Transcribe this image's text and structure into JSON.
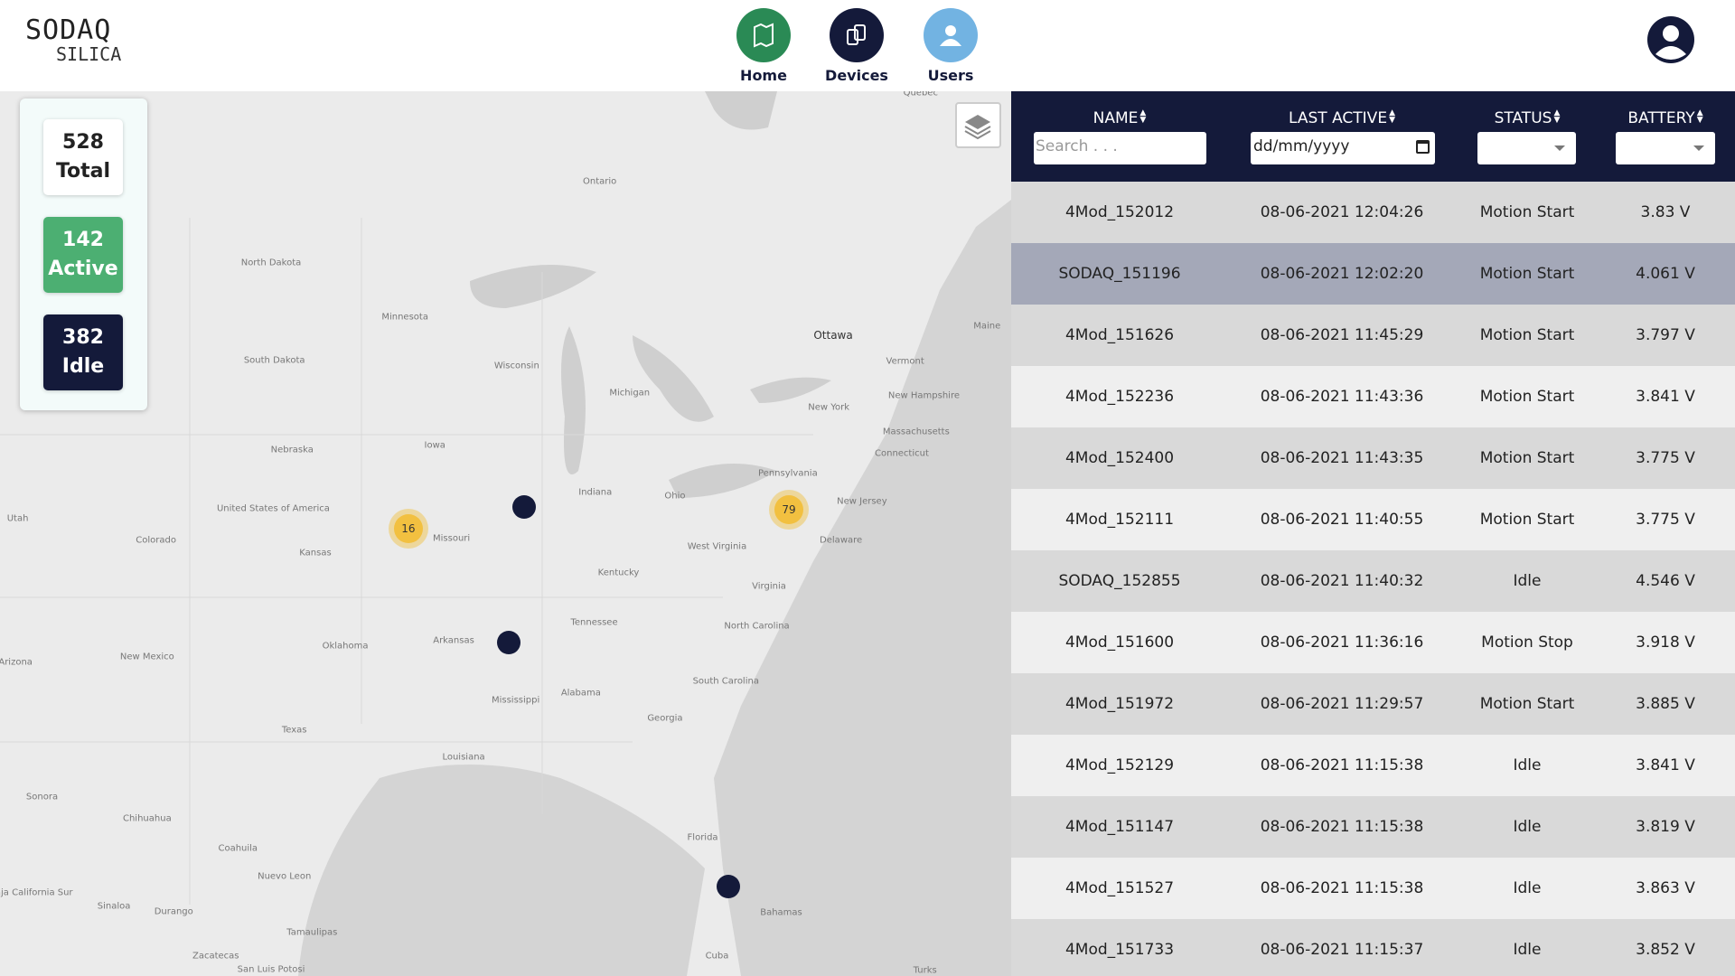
{
  "header": {
    "logo_top": "SODAQ",
    "logo_bottom": "SILICA",
    "nav": [
      "Home",
      "Devices",
      "Users"
    ]
  },
  "stats": [
    {
      "value": "528",
      "label": "Total"
    },
    {
      "value": "142",
      "label": "Active"
    },
    {
      "value": "382",
      "label": "Idle"
    }
  ],
  "map": {
    "labels": [
      "Quebec",
      "Ontario",
      "North Dakota",
      "Minnesota",
      "South Dakota",
      "Wisconsin",
      "Michigan",
      "Ottawa",
      "Maine",
      "Vermont",
      "New Hampshire",
      "New York",
      "Massachusetts",
      "Connecticut",
      "Nebraska",
      "Iowa",
      "Pennsylvania",
      "Indiana",
      "Ohio",
      "New Jersey",
      "United States of America",
      "Utah",
      "Colorado",
      "Kansas",
      "Missouri",
      "West Virginia",
      "Delaware",
      "Kentucky",
      "Virginia",
      "Tennessee",
      "North Carolina",
      "Arkansas",
      "Oklahoma",
      "New Mexico",
      "Arizona",
      "South Carolina",
      "Mississippi",
      "Alabama",
      "Georgia",
      "Texas",
      "Louisiana",
      "Sonora",
      "Chihuahua",
      "Florida",
      "Coahuila",
      "Nuevo Leon",
      "Baja California Sur",
      "Sinaloa",
      "Durango",
      "Bahamas",
      "Tamaulipas",
      "Zacatecas",
      "Cuba",
      "Turks",
      "San Luis Potosi"
    ],
    "clusters": [
      "16",
      "79"
    ]
  },
  "table": {
    "columns": [
      "NAME",
      "LAST ACTIVE",
      "STATUS",
      "BATTERY"
    ],
    "search_placeholder": "Search . . .",
    "date_placeholder": "dd/mm/yyyy",
    "rows": [
      [
        "4Mod_152012",
        "08-06-2021 12:04:26",
        "Motion Start",
        "3.83 V"
      ],
      [
        "SODAQ_151196",
        "08-06-2021 12:02:20",
        "Motion Start",
        "4.061 V"
      ],
      [
        "4Mod_151626",
        "08-06-2021 11:45:29",
        "Motion Start",
        "3.797 V"
      ],
      [
        "4Mod_152236",
        "08-06-2021 11:43:36",
        "Motion Start",
        "3.841 V"
      ],
      [
        "4Mod_152400",
        "08-06-2021 11:43:35",
        "Motion Start",
        "3.775 V"
      ],
      [
        "4Mod_152111",
        "08-06-2021 11:40:55",
        "Motion Start",
        "3.775 V"
      ],
      [
        "SODAQ_152855",
        "08-06-2021 11:40:32",
        "Idle",
        "4.546 V"
      ],
      [
        "4Mod_151600",
        "08-06-2021 11:36:16",
        "Motion Stop",
        "3.918 V"
      ],
      [
        "4Mod_151972",
        "08-06-2021 11:29:57",
        "Motion Start",
        "3.885 V"
      ],
      [
        "4Mod_152129",
        "08-06-2021 11:15:38",
        "Idle",
        "3.841 V"
      ],
      [
        "4Mod_151147",
        "08-06-2021 11:15:38",
        "Idle",
        "3.819 V"
      ],
      [
        "4Mod_151527",
        "08-06-2021 11:15:38",
        "Idle",
        "3.863 V"
      ],
      [
        "4Mod_151733",
        "08-06-2021 11:15:37",
        "Idle",
        "3.852 V"
      ]
    ]
  }
}
